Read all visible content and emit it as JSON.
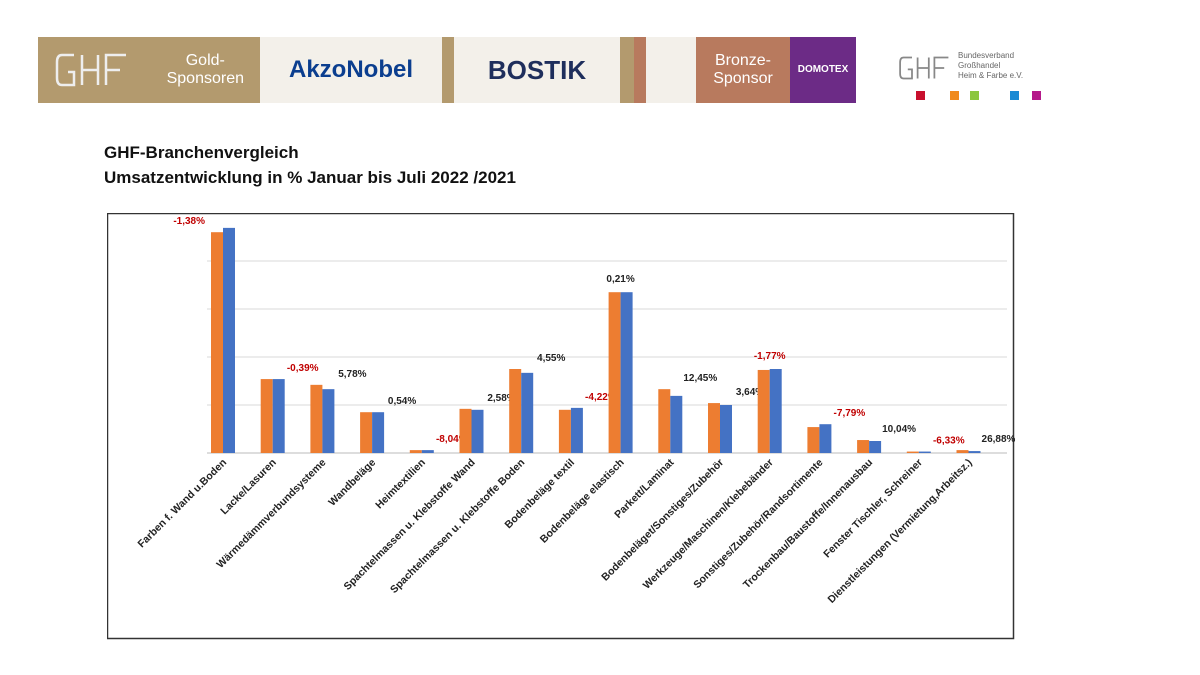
{
  "header": {
    "gold_label": "Gold-\nSponsoren",
    "akzo": "AkzoNobel",
    "bostik": "BOSTIK",
    "bronze_label": "Bronze-\nSponsor",
    "domotex": "DOMOTEX",
    "logo_text": "GHF",
    "assoc_lines": [
      "Bundesverband",
      "Großhandel",
      "Heim & Farbe e.V."
    ],
    "colors": {
      "gold": "#b39a6e",
      "bronze": "#b87a5e",
      "domotex": "#6c2b86",
      "akzo": "#0b3e8f",
      "bostik": "#1e2e5c"
    },
    "squares": [
      "#c8102e",
      "#f08a1c",
      "#8cc63f",
      "#1a8ad4",
      "#b5198a"
    ]
  },
  "title_line1": "GHF-Branchenvergleich",
  "title_line2": "Umsatzentwicklung in % Januar bis Juli 2022 /2021",
  "chart_data": {
    "type": "bar",
    "grid": true,
    "ylim": [
      0,
      5
    ],
    "colors": [
      "#ed7d31",
      "#4472c4"
    ],
    "categories": [
      "Farben f. Wand u.Boden",
      "Lacke/Lasuren",
      "Wärmedämmverbundsysteme",
      "Wandbeläge",
      "Heimtextilien",
      "Spachtelmassen u. Klebstoffe Wand",
      "Spachtelmassen u. Klebstoffe Boden",
      "Bodenbeläge textil",
      "Bodenbeläge elastisch",
      "Parkett/Laminat",
      "Bodenbeläget/Sonstiges/Zubehör",
      "Werkzeuge/Maschinen/Klebebänder",
      "Sonstiges/Zubehör/Randsortimente",
      "Trockenbau/Baustoffe/Innenausbau",
      "Fenster Tischler, Schreiner",
      "Dienstleistungen (Vermietung,Arbeitsz.)"
    ],
    "series": [
      {
        "values": [
          4.6,
          1.54,
          1.42,
          0.85,
          0.06,
          0.92,
          1.75,
          0.9,
          3.35,
          1.33,
          1.04,
          1.73,
          0.54,
          0.27,
          0.03,
          0.06
        ]
      },
      {
        "values": [
          4.69,
          1.54,
          1.33,
          0.85,
          0.06,
          0.9,
          1.67,
          0.94,
          3.35,
          1.19,
          1.0,
          1.75,
          0.6,
          0.25,
          0.03,
          0.04
        ]
      }
    ],
    "data_labels": [
      "-1,38%",
      "-0,39%",
      "5,78%",
      "0,54%",
      "-8,04%",
      "2,58%",
      "4,55%",
      "-4,22%",
      "0,21%",
      "12,45%",
      "3,64%",
      "-1,77%",
      "-7,79%",
      "10,04%",
      "-6,33%",
      "26,88%"
    ]
  }
}
